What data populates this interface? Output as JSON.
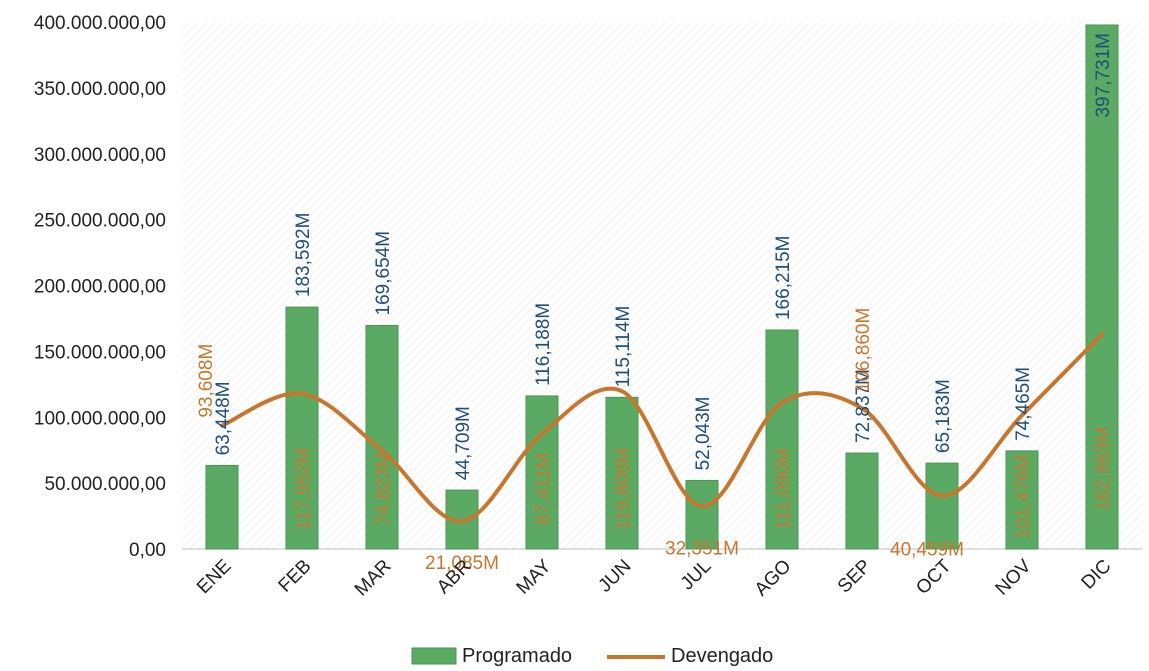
{
  "chart_data": {
    "type": "bar",
    "categories": [
      "ENE",
      "FEB",
      "MAR",
      "ABR",
      "MAY",
      "JUN",
      "JUL",
      "AGO",
      "SEP",
      "OCT",
      "NOV",
      "DIC"
    ],
    "ylim": [
      0,
      400000000
    ],
    "ytick_values": [
      0,
      50000000,
      100000000,
      150000000,
      200000000,
      250000000,
      300000000,
      350000000,
      400000000
    ],
    "ytick_labels": [
      "0,00",
      "50.000.000,00",
      "100.000.000,00",
      "150.000.000,00",
      "200.000.000,00",
      "250.000.000,00",
      "300.000.000,00",
      "350.000.000,00",
      "400.000.000,00"
    ],
    "grid": false,
    "legend": "bottom",
    "series": [
      {
        "name": "Programado",
        "type": "bar",
        "color": "#5aaa63",
        "label_color": "#1f4e79",
        "values": [
          63448000,
          183592000,
          169654000,
          44709000,
          116188000,
          115114000,
          52043000,
          166215000,
          72837000,
          65183000,
          74465000,
          397731000
        ],
        "labels": [
          "63,448M",
          "183,592M",
          "169,654M",
          "44,709M",
          "116,188M",
          "115,114M",
          "52,043M",
          "166,215M",
          "72,837M",
          "65,183M",
          "74,465M",
          "397,731M"
        ]
      },
      {
        "name": "Devengado",
        "type": "line",
        "color": "#c8762e",
        "label_color": "#c8762e",
        "values": [
          93608000,
          117952000,
          74823000,
          21085000,
          87411000,
          119808000,
          32351000,
          111090000,
          106860000,
          40459000,
          101476000,
          162963000
        ],
        "labels": [
          "93,608M",
          "117,952M",
          "74,823M",
          "21,085M",
          "87,411M",
          "119,808M",
          "32,351M",
          "111,090M",
          "106,860M",
          "40,459M",
          "101,476M",
          "162,963M"
        ]
      }
    ]
  }
}
